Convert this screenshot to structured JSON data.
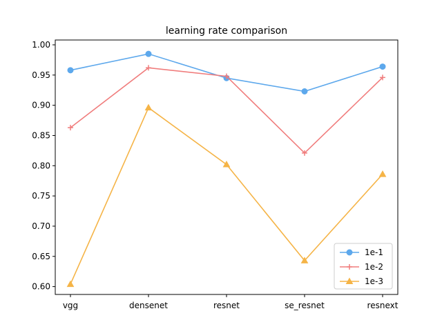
{
  "chart_data": {
    "type": "line",
    "title": "learning rate comparison",
    "xlabel": "",
    "ylabel": "",
    "categories": [
      "vgg",
      "densenet",
      "resnet",
      "se_resnet",
      "resnext"
    ],
    "ylim": [
      0.587,
      1.008
    ],
    "yticks": [
      "0.60",
      "0.65",
      "0.70",
      "0.75",
      "0.80",
      "0.85",
      "0.90",
      "0.95",
      "1.00"
    ],
    "grid": false,
    "legend_position": "lower-right",
    "series": [
      {
        "name": "1e-1",
        "values": [
          0.958,
          0.985,
          0.945,
          0.923,
          0.964
        ],
        "color": "#5DA8EC",
        "marker": "circle"
      },
      {
        "name": "1e-2",
        "values": [
          0.863,
          0.962,
          0.948,
          0.821,
          0.946
        ],
        "color": "#F07C7C",
        "marker": "plus"
      },
      {
        "name": "1e-3",
        "values": [
          0.604,
          0.896,
          0.802,
          0.643,
          0.786
        ],
        "color": "#F5B447",
        "marker": "triangle"
      }
    ]
  }
}
